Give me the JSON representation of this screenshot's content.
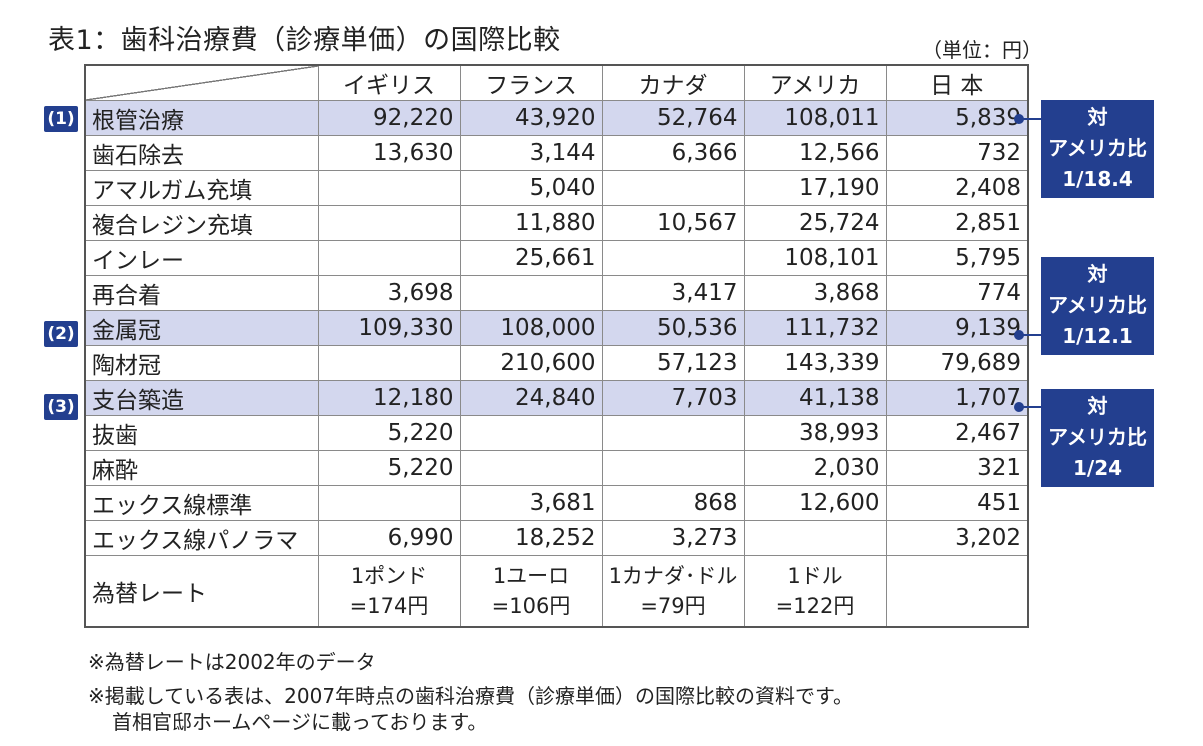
{
  "title": "表1：歯科治療費（診療単価）の国際比較",
  "unit": "（単位：円）",
  "columns": [
    "イギリス",
    "フランス",
    "カナダ",
    "アメリカ",
    "日 本"
  ],
  "rows": [
    {
      "label": "根管治療",
      "values": [
        "92,220",
        "43,920",
        "52,764",
        "108,011",
        "5,839"
      ]
    },
    {
      "label": "歯石除去",
      "values": [
        "13,630",
        "3,144",
        "6,366",
        "12,566",
        "732"
      ]
    },
    {
      "label": "アマルガム充填",
      "values": [
        "",
        "5,040",
        "",
        "17,190",
        "2,408"
      ]
    },
    {
      "label": "複合レジン充填",
      "values": [
        "",
        "11,880",
        "10,567",
        "25,724",
        "2,851"
      ]
    },
    {
      "label": "インレー",
      "values": [
        "",
        "25,661",
        "",
        "108,101",
        "5,795"
      ]
    },
    {
      "label": "再合着",
      "values": [
        "3,698",
        "",
        "3,417",
        "3,868",
        "774"
      ]
    },
    {
      "label": "金属冠",
      "values": [
        "109,330",
        "108,000",
        "50,536",
        "111,732",
        "9,139"
      ]
    },
    {
      "label": "陶材冠",
      "values": [
        "",
        "210,600",
        "57,123",
        "143,339",
        "79,689"
      ]
    },
    {
      "label": "支台築造",
      "values": [
        "12,180",
        "24,840",
        "7,703",
        "41,138",
        "1,707"
      ]
    },
    {
      "label": "抜歯",
      "values": [
        "5,220",
        "",
        "",
        "38,993",
        "2,467"
      ]
    },
    {
      "label": "麻酔",
      "values": [
        "5,220",
        "",
        "",
        "2,030",
        "321"
      ]
    },
    {
      "label": "エックス線標準",
      "values": [
        "",
        "3,681",
        "868",
        "12,600",
        "451"
      ]
    },
    {
      "label": "エックス線パノラマ",
      "values": [
        "6,990",
        "18,252",
        "3,273",
        "",
        "3,202"
      ]
    }
  ],
  "rate_row": {
    "label": "為替レート",
    "values": [
      [
        "1ポンド",
        "=174円"
      ],
      [
        "1ユーロ",
        "=106円"
      ],
      [
        "1カナダ･ドル",
        "=79円"
      ],
      [
        "1ドル",
        "=122円"
      ],
      [
        "",
        ""
      ]
    ]
  },
  "markers": [
    "(1)",
    "(2)",
    "(3)"
  ],
  "callouts": [
    {
      "line1": "対",
      "line2": "アメリカ比",
      "line3": "1/18.4"
    },
    {
      "line1": "対",
      "line2": "アメリカ比",
      "line3": "1/12.1"
    },
    {
      "line1": "対",
      "line2": "アメリカ比",
      "line3": "1/24"
    }
  ],
  "notes": [
    "※為替レートは2002年のデータ",
    "※掲載している表は、2007年時点の歯科治療費（診療単価）の国際比較の資料です。",
    "首相官邸ホームページに載っております。"
  ],
  "colors": {
    "accent": "#233f8f",
    "highlight": "#d3d7ee"
  }
}
